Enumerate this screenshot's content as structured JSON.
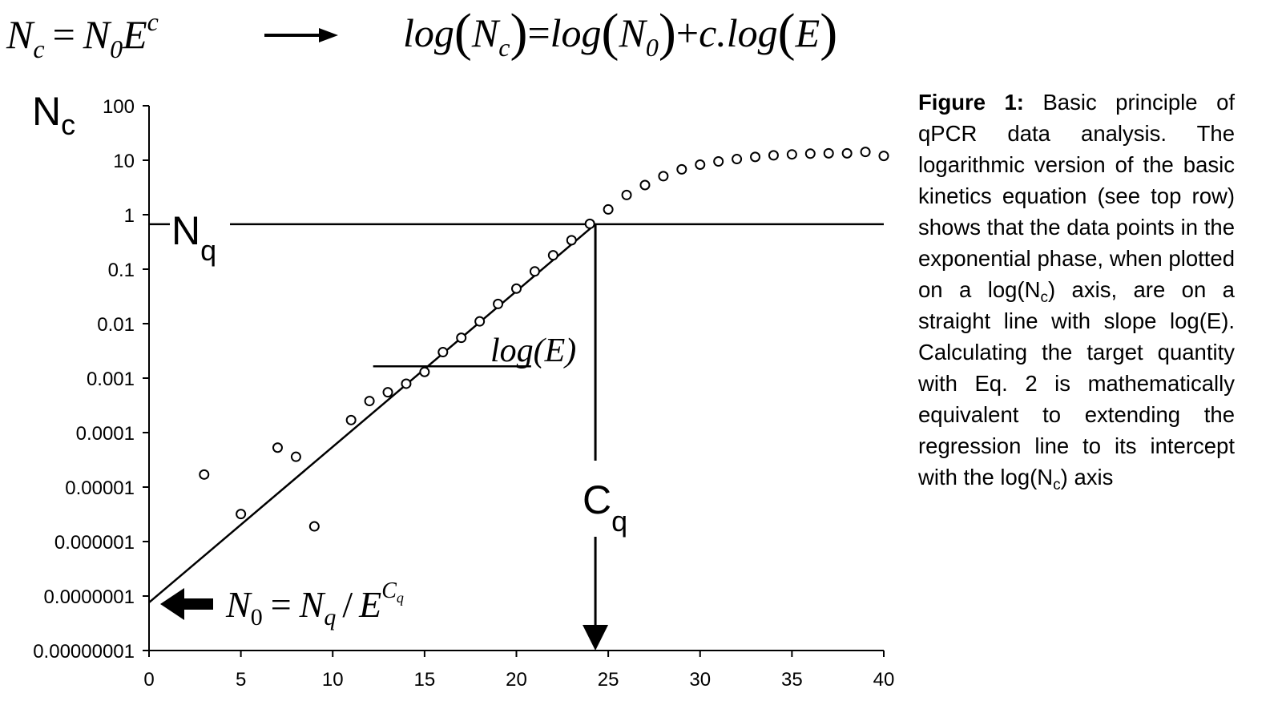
{
  "equations": {
    "basic": {
      "lhs_N": "N",
      "lhs_sub": "c",
      "eq": "=",
      "N0": "N",
      "N0_sub": "0",
      "E": "E",
      "exp": "c"
    },
    "arrow_icon": "right-arrow-icon",
    "log_form": {
      "log1": "log",
      "N": "N",
      "N_sub": "c",
      "eq": "=",
      "log2": "log",
      "N0": "N",
      "N0_sub": "0",
      "plus": "+",
      "c_log": "c.log",
      "E": "E"
    },
    "n0_formula": {
      "N": "N",
      "N_sub": "0",
      "eq": "=",
      "Nq": "N",
      "Nq_sub": "q",
      "slash": "/",
      "E": "E",
      "exp": "C",
      "exp_sub": "q"
    }
  },
  "labels": {
    "y_axis": {
      "main": "N",
      "sub": "c"
    },
    "threshold": {
      "main": "N",
      "sub": "q"
    },
    "cq": {
      "main": "C",
      "sub": "q"
    },
    "slope": "log(E)"
  },
  "caption": {
    "fig_label": "Figure 1:",
    "text_1": " Basic principle of qPCR data analysis. The logarithmic version of the basic kinetics equation (see top row) shows that the data points in the exponential phase, when plotted on a log(N",
    "sub_1": "c",
    "text_2": ") axis, are on a straight line with slope log(E). Calculating the target quantity with Eq. 2 is mathematically equivalent to extending the regression line to its intercept with the log(N",
    "sub_2": "c",
    "text_3": ") axis"
  },
  "chart_data": {
    "type": "scatter",
    "title": "",
    "xlabel": "",
    "ylabel": "Nc",
    "y_scale": "log",
    "xlim": [
      0,
      40
    ],
    "ylim": [
      1e-08,
      100
    ],
    "x_ticks": [
      0,
      5,
      10,
      15,
      20,
      25,
      30,
      35,
      40
    ],
    "x_tick_labels": [
      "0",
      "5",
      "10",
      "15",
      "20",
      "25",
      "30",
      "35",
      "40"
    ],
    "y_ticks": [
      1e-08,
      1e-07,
      1e-06,
      1e-05,
      0.0001,
      0.001,
      0.01,
      0.1,
      1,
      10,
      100
    ],
    "y_tick_labels": [
      "0.00000001",
      "0.0000001",
      "0.000001",
      "0.00001",
      "0.0001",
      "0.001",
      "0.01",
      "0.1",
      "1",
      "10",
      "100"
    ],
    "grid": false,
    "legend": "none",
    "series": [
      {
        "marker": "open-circle",
        "x": [
          3,
          5,
          7,
          8,
          9,
          11,
          12,
          13,
          14,
          15,
          16,
          17,
          18,
          19,
          20,
          21,
          22,
          23,
          24,
          25,
          26,
          27,
          28,
          29,
          30,
          31,
          32,
          33,
          34,
          35,
          36,
          37,
          38,
          39,
          40
        ],
        "y": [
          1.7e-05,
          3.2e-06,
          5.3e-05,
          3.6e-05,
          1.9e-06,
          0.00017,
          0.00038,
          0.00055,
          0.00079,
          0.0013,
          0.003,
          0.0055,
          0.011,
          0.023,
          0.044,
          0.091,
          0.18,
          0.34,
          0.68,
          1.25,
          2.3,
          3.5,
          5.1,
          6.8,
          8.3,
          9.5,
          10.5,
          11.5,
          12.3,
          12.8,
          13.2,
          13.4,
          13.4,
          14.2,
          12.0
        ]
      }
    ],
    "regression_line": {
      "x": [
        0,
        24.3
      ],
      "y": [
        7.6e-08,
        0.67
      ]
    },
    "threshold_Nq": 0.67,
    "Cq": 24.3,
    "slope_guide": {
      "x": [
        12.2,
        20.8
      ],
      "y": 0.00165
    }
  }
}
